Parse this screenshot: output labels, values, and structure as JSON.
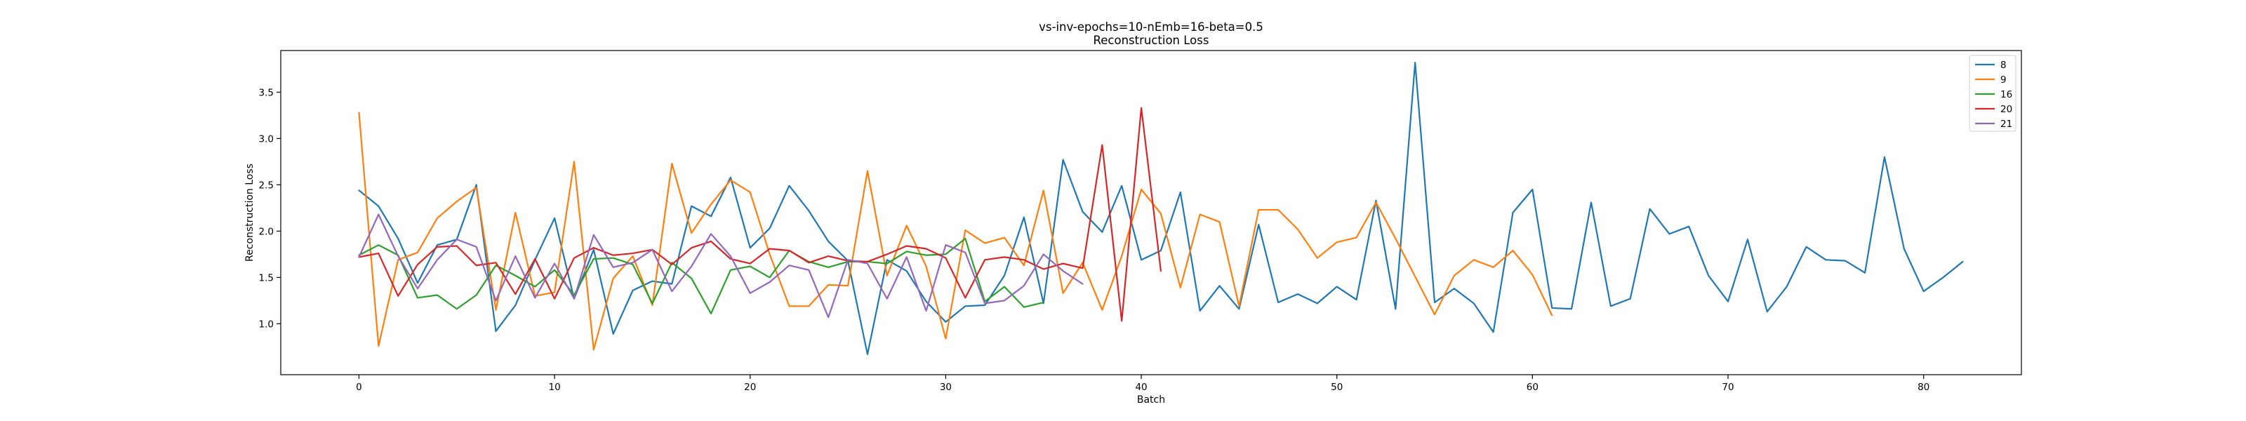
{
  "chart_data": {
    "type": "line",
    "title": "vs-inv-epochs=10-nEmb=16-beta=0.5",
    "subtitle": "Reconstruction Loss",
    "xlabel": "Batch",
    "ylabel": "Reconstruction Loss",
    "xlim": [
      -4,
      85
    ],
    "ylim": [
      0.45,
      3.95
    ],
    "xticks": [
      0,
      10,
      20,
      30,
      40,
      50,
      60,
      70,
      80
    ],
    "yticks": [
      1.0,
      1.5,
      2.0,
      2.5,
      3.0,
      3.5
    ],
    "xtick_labels": [
      "0",
      "10",
      "20",
      "30",
      "40",
      "50",
      "60",
      "70",
      "80"
    ],
    "ytick_labels": [
      "1.0",
      "1.5",
      "2.0",
      "2.5",
      "3.0",
      "3.5"
    ],
    "grid": false,
    "legend_position": "top-right",
    "series": [
      {
        "name": "8",
        "color": "#1f77b4",
        "values": [
          2.44,
          2.27,
          1.92,
          1.44,
          1.85,
          1.91,
          2.5,
          0.92,
          1.2,
          1.69,
          2.14,
          1.27,
          1.8,
          0.89,
          1.36,
          1.46,
          1.43,
          2.27,
          2.16,
          2.58,
          1.82,
          2.03,
          2.49,
          2.22,
          1.89,
          1.68,
          0.67,
          1.69,
          1.57,
          1.24,
          1.02,
          1.19,
          1.2,
          1.52,
          2.15,
          1.22,
          2.77,
          2.21,
          1.99,
          2.49,
          1.69,
          1.79,
          2.42,
          1.14,
          1.41,
          1.16,
          2.07,
          1.23,
          1.32,
          1.22,
          1.4,
          1.26,
          2.33,
          1.16,
          3.82,
          1.23,
          1.38,
          1.22,
          0.91,
          2.2,
          2.45,
          1.17,
          1.16,
          2.31,
          1.19,
          1.27,
          2.24,
          1.97,
          2.05,
          1.52,
          1.24,
          1.91,
          1.13,
          1.4,
          1.83,
          1.69,
          1.68,
          1.55,
          2.8,
          1.81,
          1.35,
          1.5,
          1.67
        ]
      },
      {
        "name": "9",
        "color": "#ff7f0e",
        "values": [
          3.28,
          0.76,
          1.69,
          1.77,
          2.14,
          2.32,
          2.47,
          1.15,
          2.2,
          1.3,
          1.34,
          2.75,
          0.72,
          1.49,
          1.73,
          1.2,
          2.73,
          1.98,
          2.29,
          2.55,
          2.42,
          1.75,
          1.19,
          1.19,
          1.42,
          1.41,
          2.65,
          1.52,
          2.06,
          1.62,
          0.84,
          2.01,
          1.87,
          1.93,
          1.63,
          2.44,
          1.33,
          1.66,
          1.15,
          1.73,
          2.45,
          2.19,
          1.39,
          2.18,
          2.1,
          1.19,
          2.23,
          2.23,
          2.02,
          1.71,
          1.88,
          1.93,
          2.31,
          1.92,
          1.51,
          1.1,
          1.52,
          1.69,
          1.61,
          1.79,
          1.53,
          1.09
        ]
      },
      {
        "name": "16",
        "color": "#2ca02c",
        "values": [
          1.74,
          1.85,
          1.74,
          1.28,
          1.31,
          1.16,
          1.31,
          1.63,
          1.52,
          1.4,
          1.58,
          1.31,
          1.7,
          1.71,
          1.64,
          1.22,
          1.66,
          1.49,
          1.11,
          1.58,
          1.62,
          1.5,
          1.79,
          1.67,
          1.61,
          1.67,
          1.67,
          1.65,
          1.78,
          1.74,
          1.75,
          1.92,
          1.24,
          1.4,
          1.18,
          1.23
        ]
      },
      {
        "name": "20",
        "color": "#d62728",
        "values": [
          1.72,
          1.76,
          1.3,
          1.64,
          1.83,
          1.84,
          1.63,
          1.66,
          1.32,
          1.7,
          1.27,
          1.71,
          1.82,
          1.74,
          1.76,
          1.8,
          1.64,
          1.82,
          1.89,
          1.7,
          1.65,
          1.81,
          1.79,
          1.66,
          1.73,
          1.68,
          1.67,
          1.75,
          1.84,
          1.81,
          1.71,
          1.28,
          1.69,
          1.72,
          1.69,
          1.59,
          1.65,
          1.6,
          2.93,
          1.03,
          3.33,
          1.57
        ]
      },
      {
        "name": "21",
        "color": "#9467bd",
        "values": [
          1.72,
          2.18,
          1.73,
          1.38,
          1.69,
          1.91,
          1.83,
          1.25,
          1.73,
          1.28,
          1.65,
          1.27,
          1.96,
          1.61,
          1.66,
          1.8,
          1.35,
          1.62,
          1.97,
          1.73,
          1.33,
          1.45,
          1.63,
          1.58,
          1.07,
          1.69,
          1.65,
          1.27,
          1.72,
          1.14,
          1.85,
          1.77,
          1.22,
          1.25,
          1.41,
          1.75,
          1.57,
          1.43
        ]
      }
    ]
  }
}
